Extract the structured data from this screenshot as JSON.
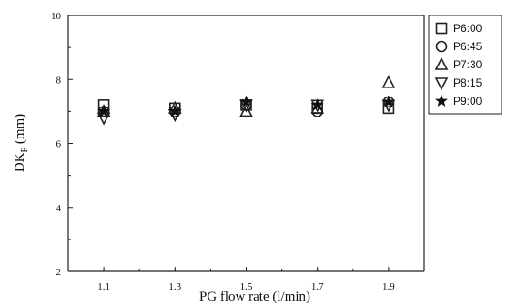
{
  "chart_data": {
    "type": "scatter",
    "title": "",
    "xlabel": "PG flow rate (l/min)",
    "ylabel_main": "DK",
    "ylabel_sub": "F",
    "ylabel_unit": " (mm)",
    "xlim": [
      1.0,
      2.0
    ],
    "ylim": [
      2,
      10
    ],
    "x_ticks": [
      "1.1",
      "1.3",
      "1.5",
      "1.7",
      "1.9"
    ],
    "y_ticks": [
      "2",
      "4",
      "6",
      "8",
      "10"
    ],
    "legend_position": "top-right-outside",
    "grid": false,
    "series": [
      {
        "name": "P6:00",
        "marker": "square",
        "x": [
          1.1,
          1.3,
          1.5,
          1.7,
          1.9
        ],
        "y": [
          7.2,
          7.1,
          7.2,
          7.1,
          7.1
        ]
      },
      {
        "name": "P6:45",
        "marker": "circle",
        "x": [
          1.1,
          1.3,
          1.5,
          1.7,
          1.9
        ],
        "y": [
          7.0,
          7.0,
          7.2,
          7.0,
          7.3
        ]
      },
      {
        "name": "P7:30",
        "marker": "triangle-up",
        "x": [
          1.1,
          1.3,
          1.5,
          1.7,
          1.9
        ],
        "y": [
          7.0,
          7.1,
          7.0,
          7.1,
          7.9
        ]
      },
      {
        "name": "P8:15",
        "marker": "triangle-down",
        "x": [
          1.1,
          1.3,
          1.5,
          1.7,
          1.9
        ],
        "y": [
          6.8,
          6.9,
          7.2,
          7.2,
          7.2
        ]
      },
      {
        "name": "P9:00",
        "marker": "star",
        "x": [
          1.1,
          1.3,
          1.5,
          1.7,
          1.9
        ],
        "y": [
          7.0,
          7.0,
          7.3,
          7.2,
          7.3
        ]
      }
    ]
  }
}
